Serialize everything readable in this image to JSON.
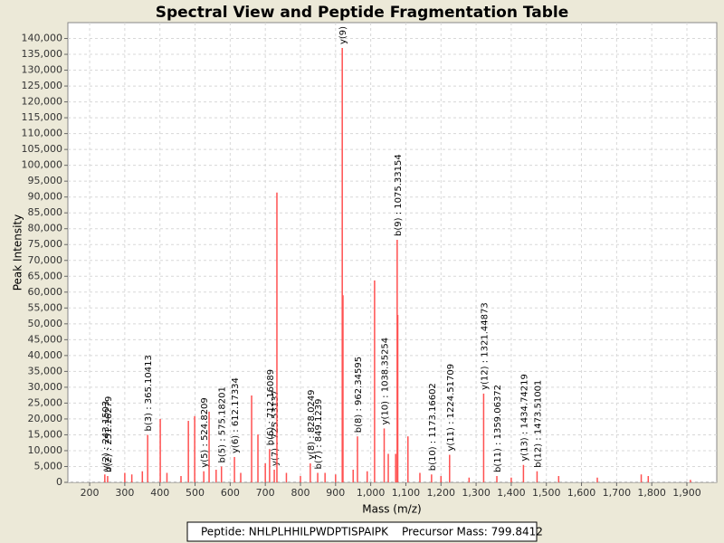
{
  "chart_data": {
    "type": "stem",
    "title": "Spectral View and Peptide Fragmentation Table",
    "xlabel": "Mass (m/z)",
    "ylabel": "Peak Intensity",
    "color": "#ff5050",
    "grid": true,
    "xlim": [
      138,
      1985
    ],
    "ylim": [
      0,
      145000
    ],
    "xticks": [
      200,
      300,
      400,
      500,
      600,
      700,
      800,
      900,
      {
        "value": 1000,
        "label": "1,000"
      },
      {
        "value": 1100,
        "label": "1,100"
      },
      {
        "value": 1200,
        "label": "1,200"
      },
      {
        "value": 1300,
        "label": "1,300"
      },
      {
        "value": 1400,
        "label": "1,400"
      },
      {
        "value": 1500,
        "label": "1,500"
      },
      {
        "value": 1600,
        "label": "1,600"
      },
      {
        "value": 1700,
        "label": "1,700"
      },
      {
        "value": 1800,
        "label": "1,800"
      },
      {
        "value": 1900,
        "label": "1,900"
      }
    ],
    "yticks": [
      0,
      {
        "value": 5000,
        "label": "5,000"
      },
      {
        "value": 10000,
        "label": "10,000"
      },
      {
        "value": 15000,
        "label": "15,000"
      },
      {
        "value": 20000,
        "label": "20,000"
      },
      {
        "value": 25000,
        "label": "25,000"
      },
      {
        "value": 30000,
        "label": "30,000"
      },
      {
        "value": 35000,
        "label": "35,000"
      },
      {
        "value": 40000,
        "label": "40,000"
      },
      {
        "value": 45000,
        "label": "45,000"
      },
      {
        "value": 50000,
        "label": "50,000"
      },
      {
        "value": 55000,
        "label": "55,000"
      },
      {
        "value": 60000,
        "label": "60,000"
      },
      {
        "value": 65000,
        "label": "65,000"
      },
      {
        "value": 70000,
        "label": "70,000"
      },
      {
        "value": 75000,
        "label": "75,000"
      },
      {
        "value": 80000,
        "label": "80,000"
      },
      {
        "value": 85000,
        "label": "85,000"
      },
      {
        "value": 90000,
        "label": "90,000"
      },
      {
        "value": 95000,
        "label": "95,000"
      },
      {
        "value": 100000,
        "label": "100,000"
      },
      {
        "value": 105000,
        "label": "105,000"
      },
      {
        "value": 110000,
        "label": "110,000"
      },
      {
        "value": 115000,
        "label": "115,000"
      },
      {
        "value": 120000,
        "label": "120,000"
      },
      {
        "value": 125000,
        "label": "125,000"
      },
      {
        "value": 130000,
        "label": "130,000"
      },
      {
        "value": 135000,
        "label": "135,000"
      },
      {
        "value": 140000,
        "label": "140,000"
      }
    ],
    "x": [
      243.1503,
      251.16279,
      300,
      320,
      350,
      365.10413,
      401,
      420,
      460,
      481,
      499,
      524.8209,
      540,
      560,
      575.18201,
      612.17334,
      630,
      661,
      679,
      700,
      712.16089,
      725.53137,
      733,
      760,
      800,
      828.0249,
      849.1239,
      870,
      900,
      919,
      921,
      950,
      962.34595,
      990,
      1011,
      1038.35254,
      1050,
      1071,
      1075.33154,
      1077,
      1106,
      1140,
      1173.16602,
      1200,
      1224.51709,
      1280,
      1321.44873,
      1359.06372,
      1400,
      1434.74219,
      1473.51001,
      1535,
      1645,
      1770,
      1790,
      1910
    ],
    "values": [
      2500,
      2000,
      3000,
      2500,
      3500,
      15000,
      20000,
      3000,
      2000,
      19400,
      20900,
      3500,
      22300,
      4000,
      5000,
      8000,
      3000,
      27400,
      15100,
      6000,
      10500,
      4000,
      91400,
      3000,
      2000,
      6000,
      3000,
      3000,
      2500,
      137000,
      59000,
      4000,
      14500,
      3500,
      63700,
      17000,
      9000,
      9000,
      76500,
      52800,
      14500,
      3000,
      2500,
      2000,
      8700,
      1500,
      28000,
      2000,
      1500,
      5500,
      3500,
      2000,
      1500,
      2500,
      2000,
      800
    ],
    "peak_labels": [
      "y(2) : 243.1503",
      "b(2) : 251.16279",
      null,
      null,
      null,
      "b(3) : 365.10413",
      null,
      null,
      null,
      null,
      null,
      "y(5) : 524.8209",
      null,
      null,
      "b(5) : 575.18201",
      "y(6) : 612.17334",
      null,
      null,
      null,
      null,
      "b(6) : 712.16089",
      "y(7) : 725.53137",
      null,
      null,
      null,
      "y(8) : 828.0249",
      "b(7) : 849.1239",
      null,
      null,
      "y(9) :",
      null,
      null,
      "b(8) : 962.34595",
      null,
      null,
      "y(10) : 1038.35254",
      null,
      null,
      "b(9) : 1075.33154",
      null,
      null,
      null,
      "b(10) : 1173.16602",
      null,
      "y(11) : 1224.51709",
      null,
      "y(12) : 1321.44873",
      "b(11) : 1359.06372",
      null,
      "y(13) : 1434.74219",
      "b(12) : 1473.51001",
      null,
      null,
      null,
      null,
      null
    ]
  },
  "footer": {
    "peptide": "Peptide: NHLPLHHILPWDPTISPAIPK",
    "precursor": "Precursor Mass: 799.8412"
  }
}
